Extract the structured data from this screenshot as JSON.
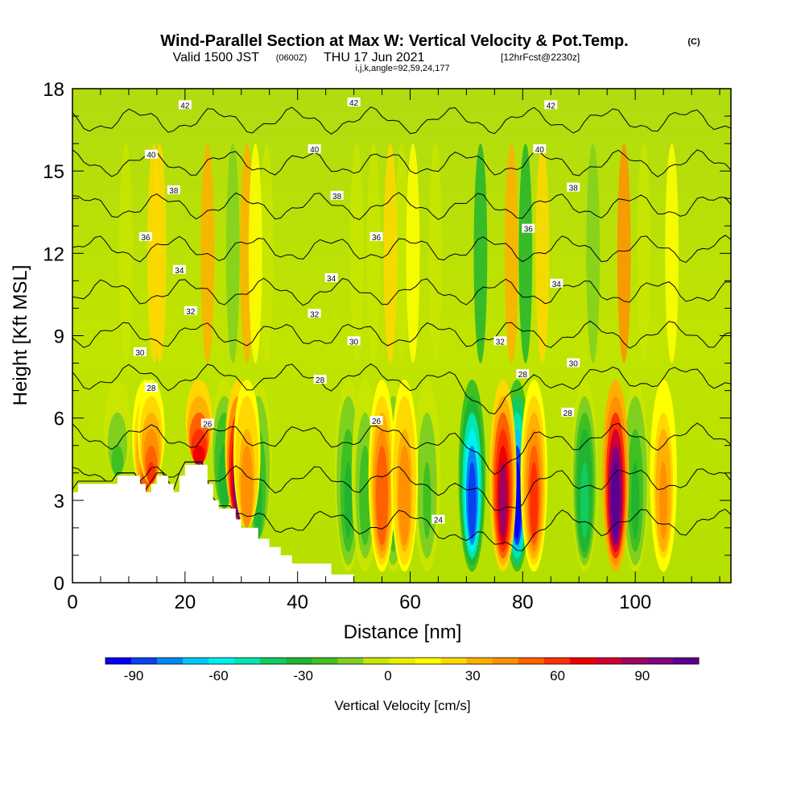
{
  "header": {
    "title": "Wind-Parallel Section at Max W: Vertical Velocity & Pot.Temp.",
    "title_units": "(C)",
    "valid_prefix": "Valid 1500 JST",
    "valid_zulu": "(0600Z)",
    "valid_date": "THU 17 Jun 2021",
    "forecast": "[12hrFcst@2230z]",
    "params": "i,j,k,angle=92,59,24,177"
  },
  "chart_data": {
    "type": "heatmap",
    "xlabel": "Distance [nm]",
    "ylabel": "Height [Kft MSL]",
    "xlim": [
      0,
      117
    ],
    "ylim": [
      0,
      18
    ],
    "x_ticks": [
      0,
      20,
      40,
      60,
      80,
      100
    ],
    "y_ticks": [
      0,
      3,
      6,
      9,
      12,
      15,
      18
    ],
    "colorbar": {
      "label": "Vertical Velocity [cm/s]",
      "ticks": [
        -90,
        -60,
        -30,
        0,
        30,
        60,
        90
      ],
      "range": [
        -100,
        110
      ],
      "colors": [
        "#0000f5",
        "#0a40f0",
        "#0088f0",
        "#00c8f5",
        "#00f0f0",
        "#00e6b0",
        "#10cc60",
        "#20b430",
        "#40c020",
        "#80d020",
        "#c8e600",
        "#e6f000",
        "#ffff00",
        "#ffd800",
        "#ffb000",
        "#ff9000",
        "#ff6000",
        "#ff3000",
        "#ee0000",
        "#d00030",
        "#a00060",
        "#800080",
        "#5c0090"
      ]
    },
    "background_w": 3,
    "updrafts": [
      {
        "x": 13,
        "w": 50
      },
      {
        "x": 14,
        "w": 60
      },
      {
        "x": 22.5,
        "w": 85
      },
      {
        "x": 29.5,
        "w": 100
      },
      {
        "x": 31,
        "w": 45
      },
      {
        "x": 55,
        "w": 55
      },
      {
        "x": 59,
        "w": 45
      },
      {
        "x": 76.5,
        "w": 85
      },
      {
        "x": 82,
        "w": 60
      },
      {
        "x": 96.5,
        "w": 110
      },
      {
        "x": 105,
        "w": 40
      }
    ],
    "downdrafts": [
      {
        "x": 8,
        "w": -25
      },
      {
        "x": 27,
        "w": -35
      },
      {
        "x": 33,
        "w": -30
      },
      {
        "x": 49,
        "w": -30
      },
      {
        "x": 52,
        "w": -25
      },
      {
        "x": 57,
        "w": -30
      },
      {
        "x": 63,
        "w": -20
      },
      {
        "x": 71,
        "w": -90
      },
      {
        "x": 79,
        "w": -100
      },
      {
        "x": 91,
        "w": -40
      },
      {
        "x": 100,
        "w": -30
      }
    ],
    "contours": {
      "name": "Potential Temperature (C)",
      "levels": [
        24,
        26,
        28,
        30,
        32,
        34,
        36,
        38,
        40,
        42
      ],
      "labels": [
        {
          "x": 20,
          "y": 17.4,
          "text": "42"
        },
        {
          "x": 50,
          "y": 17.5,
          "text": "42"
        },
        {
          "x": 85,
          "y": 17.4,
          "text": "42"
        },
        {
          "x": 14,
          "y": 15.6,
          "text": "40"
        },
        {
          "x": 43,
          "y": 15.8,
          "text": "40"
        },
        {
          "x": 83,
          "y": 15.8,
          "text": "40"
        },
        {
          "x": 18,
          "y": 14.3,
          "text": "38"
        },
        {
          "x": 47,
          "y": 14.1,
          "text": "38"
        },
        {
          "x": 89,
          "y": 14.4,
          "text": "38"
        },
        {
          "x": 13,
          "y": 12.6,
          "text": "36"
        },
        {
          "x": 54,
          "y": 12.6,
          "text": "36"
        },
        {
          "x": 81,
          "y": 12.9,
          "text": "36"
        },
        {
          "x": 19,
          "y": 11.4,
          "text": "34"
        },
        {
          "x": 46,
          "y": 11.1,
          "text": "34"
        },
        {
          "x": 86,
          "y": 10.9,
          "text": "34"
        },
        {
          "x": 21,
          "y": 9.9,
          "text": "32"
        },
        {
          "x": 43,
          "y": 9.8,
          "text": "32"
        },
        {
          "x": 76,
          "y": 8.8,
          "text": "32"
        },
        {
          "x": 12,
          "y": 8.4,
          "text": "30"
        },
        {
          "x": 50,
          "y": 8.8,
          "text": "30"
        },
        {
          "x": 89,
          "y": 8.0,
          "text": "30"
        },
        {
          "x": 14,
          "y": 7.1,
          "text": "28"
        },
        {
          "x": 44,
          "y": 7.4,
          "text": "28"
        },
        {
          "x": 80,
          "y": 7.6,
          "text": "28"
        },
        {
          "x": 88,
          "y": 6.2,
          "text": "28"
        },
        {
          "x": 24,
          "y": 5.8,
          "text": "26"
        },
        {
          "x": 54,
          "y": 5.9,
          "text": "26"
        },
        {
          "x": 65,
          "y": 2.3,
          "text": "24"
        }
      ]
    },
    "terrain_height": [
      {
        "x": 0,
        "h": 3.3
      },
      {
        "x": 1,
        "h": 3.6
      },
      {
        "x": 8,
        "h": 3.9
      },
      {
        "x": 12,
        "h": 3.6
      },
      {
        "x": 13,
        "h": 3.3
      },
      {
        "x": 14,
        "h": 3.6
      },
      {
        "x": 15,
        "h": 3.9
      },
      {
        "x": 17,
        "h": 3.6
      },
      {
        "x": 18,
        "h": 3.3
      },
      {
        "x": 19,
        "h": 3.9
      },
      {
        "x": 20,
        "h": 4.3
      },
      {
        "x": 24,
        "h": 3.6
      },
      {
        "x": 25,
        "h": 3.0
      },
      {
        "x": 26,
        "h": 2.7
      },
      {
        "x": 29,
        "h": 2.3
      },
      {
        "x": 30,
        "h": 2.0
      },
      {
        "x": 33,
        "h": 1.6
      },
      {
        "x": 35,
        "h": 1.3
      },
      {
        "x": 37,
        "h": 1.0
      },
      {
        "x": 39,
        "h": 0.7
      },
      {
        "x": 46,
        "h": 0.3
      },
      {
        "x": 50,
        "h": 0
      }
    ]
  }
}
